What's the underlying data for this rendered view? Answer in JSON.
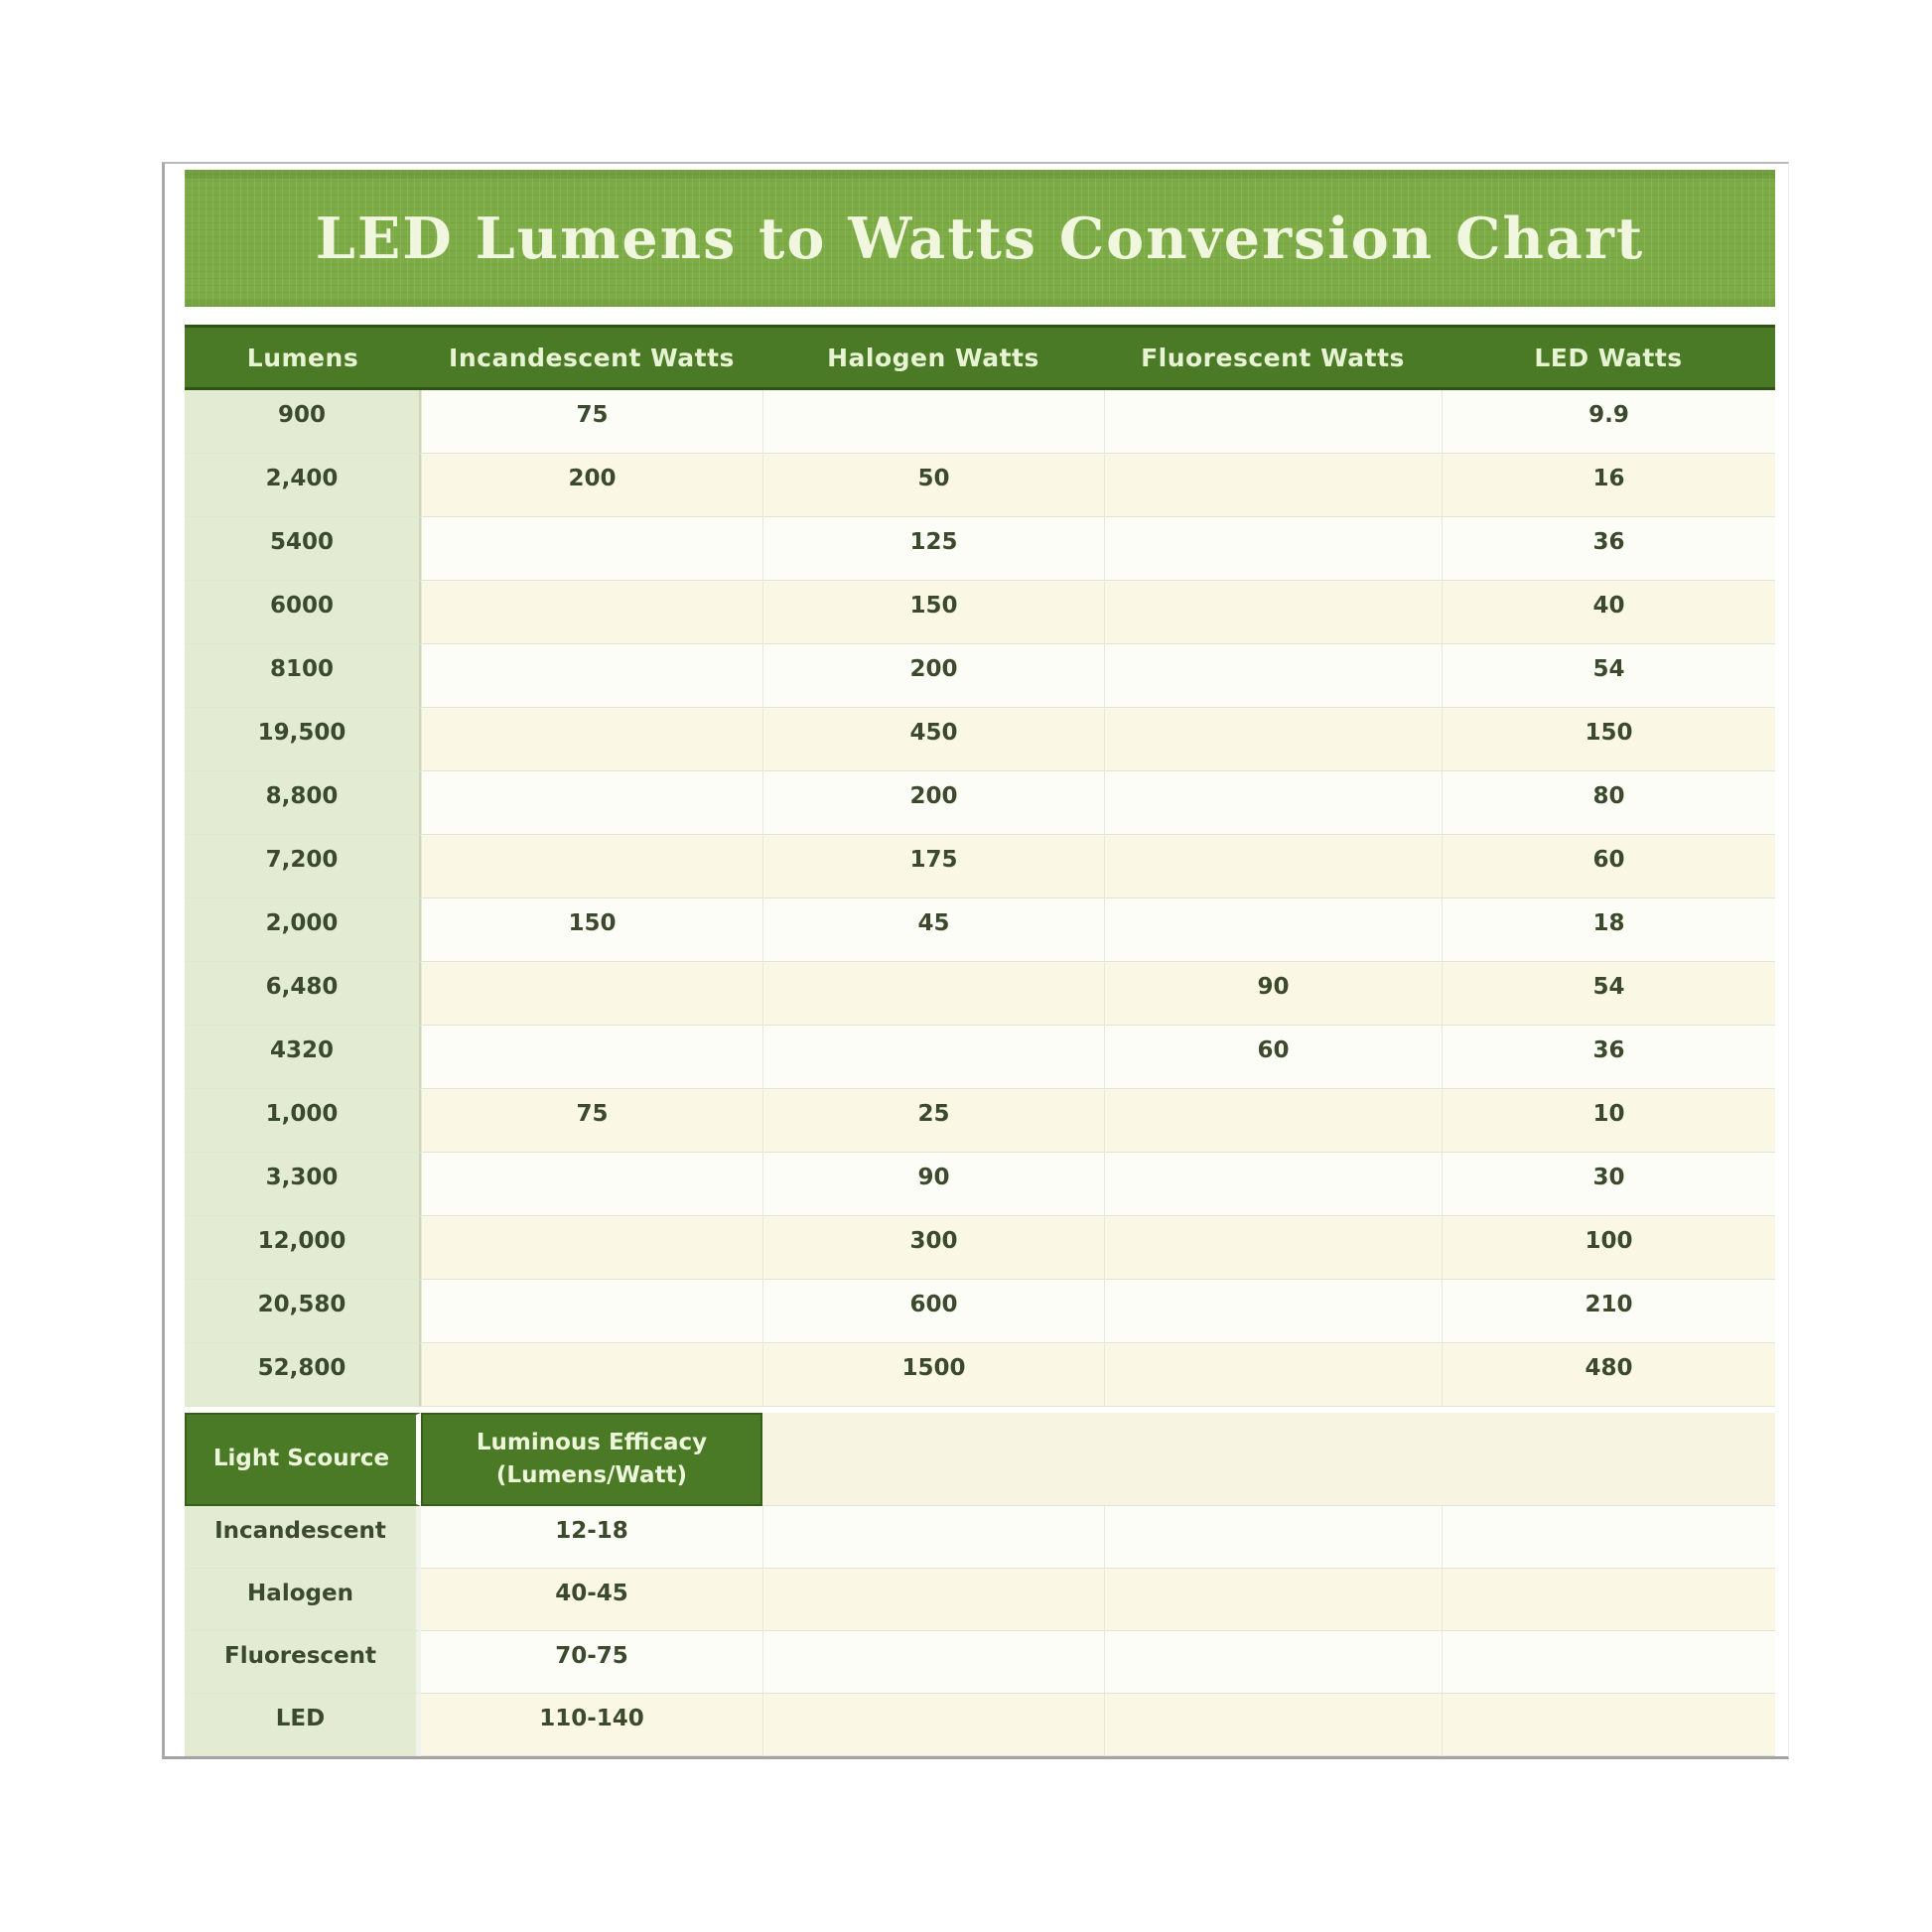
{
  "page": {
    "title": "LED Lumens to Watts Conversion Chart"
  },
  "colors": {
    "title_bar_green": "#7dac47",
    "header_green": "#4b7a27",
    "lumens_column_green": "#e3ebd3",
    "row_white": "#fdfdf8",
    "row_cream": "#faf8e4",
    "text_dark_olive": "#3b4a2c",
    "header_text": "#e8f3d4"
  },
  "chart_data": {
    "type": "table",
    "title": "LED Lumens to Watts Conversion Chart",
    "columns": [
      "Lumens",
      "Incandescent Watts",
      "Halogen Watts",
      "Fluorescent Watts",
      "LED Watts"
    ],
    "rows": [
      [
        "900",
        "75",
        "",
        "",
        "9.9"
      ],
      [
        "2,400",
        "200",
        "50",
        "",
        "16"
      ],
      [
        "5400",
        "",
        "125",
        "",
        "36"
      ],
      [
        "6000",
        "",
        "150",
        "",
        "40"
      ],
      [
        "8100",
        "",
        "200",
        "",
        "54"
      ],
      [
        "19,500",
        "",
        "450",
        "",
        "150"
      ],
      [
        "8,800",
        "",
        "200",
        "",
        "80"
      ],
      [
        "7,200",
        "",
        "175",
        "",
        "60"
      ],
      [
        "2,000",
        "150",
        "45",
        "",
        "18"
      ],
      [
        "6,480",
        "",
        "",
        "90",
        "54"
      ],
      [
        "4320",
        "",
        "",
        "60",
        "36"
      ],
      [
        "1,000",
        "75",
        "25",
        "",
        "10"
      ],
      [
        "3,300",
        "",
        "90",
        "",
        "30"
      ],
      [
        "12,000",
        "",
        "300",
        "",
        "100"
      ],
      [
        "20,580",
        "",
        "600",
        "",
        "210"
      ],
      [
        "52,800",
        "",
        "1500",
        "",
        "480"
      ]
    ],
    "efficacy_table": {
      "columns": [
        "Light Scource",
        "Luminous Efficacy\n(Lumens/Watt)"
      ],
      "rows": [
        [
          "Incandescent",
          "12-18"
        ],
        [
          "Halogen",
          "40-45"
        ],
        [
          "Fluorescent",
          "70-75"
        ],
        [
          "LED",
          "110-140"
        ]
      ]
    }
  }
}
